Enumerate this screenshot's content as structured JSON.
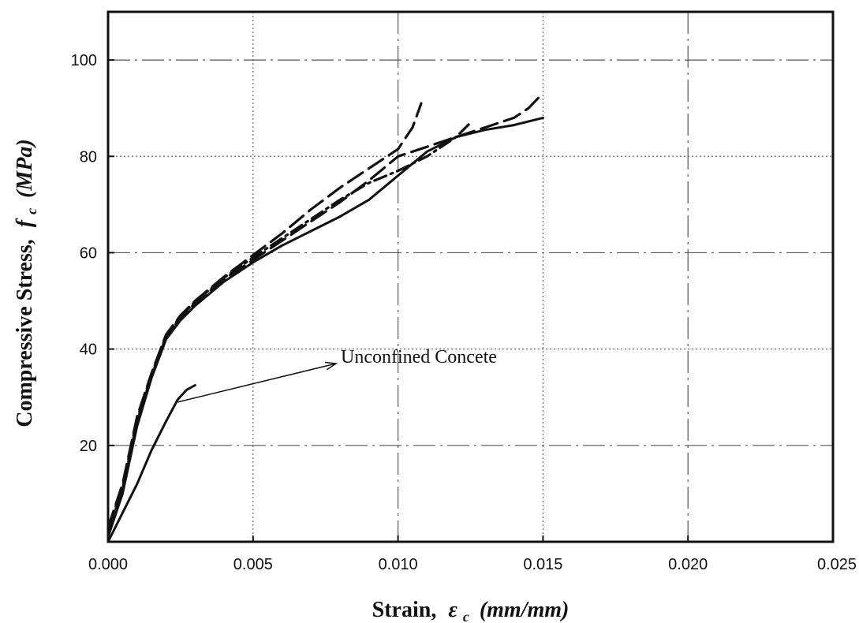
{
  "chart_data": {
    "type": "line",
    "xlabel_prefix": "Strain,",
    "xlabel_symbol": "ε",
    "xlabel_sub": "c",
    "xlabel_unit": "(mm/mm)",
    "ylabel_prefix": "Compressive Stress,",
    "ylabel_symbol": "f",
    "ylabel_sub": "c",
    "ylabel_unit": "(MPa)",
    "xlim": [
      0,
      0.025
    ],
    "ylim": [
      0,
      110
    ],
    "x_ticks": [
      0,
      0.005,
      0.01,
      0.015,
      0.02,
      0.025
    ],
    "x_tick_labels": [
      "0.000",
      "0.005",
      "0.010",
      "0.015",
      "0.020",
      "0.025"
    ],
    "y_ticks": [
      20,
      40,
      60,
      80,
      100
    ],
    "y_tick_labels": [
      "20",
      "40",
      "60",
      "80",
      "100"
    ],
    "grid": true,
    "annotation": {
      "text": "Unconfined Concete",
      "point_to": [
        0.0024,
        29
      ]
    },
    "series": [
      {
        "style": "solid",
        "points": [
          [
            0,
            1
          ],
          [
            0.0005,
            10
          ],
          [
            0.001,
            24
          ],
          [
            0.0015,
            34
          ],
          [
            0.002,
            42
          ],
          [
            0.0025,
            46
          ],
          [
            0.003,
            49
          ],
          [
            0.004,
            54
          ],
          [
            0.005,
            58
          ],
          [
            0.006,
            61.5
          ],
          [
            0.007,
            64.5
          ],
          [
            0.008,
            67.5
          ],
          [
            0.009,
            71
          ],
          [
            0.01,
            76
          ],
          [
            0.011,
            81
          ],
          [
            0.012,
            84
          ],
          [
            0.013,
            85.5
          ],
          [
            0.014,
            86.5
          ],
          [
            0.015,
            88
          ]
        ]
      },
      {
        "style": "dashed",
        "points": [
          [
            0,
            3
          ],
          [
            0.0005,
            12
          ],
          [
            0.001,
            26
          ],
          [
            0.0015,
            35
          ],
          [
            0.002,
            43
          ],
          [
            0.0025,
            47
          ],
          [
            0.003,
            50
          ],
          [
            0.004,
            55
          ],
          [
            0.005,
            59.5
          ],
          [
            0.006,
            64
          ],
          [
            0.007,
            69
          ],
          [
            0.008,
            73.5
          ],
          [
            0.009,
            77.5
          ],
          [
            0.01,
            81.5
          ],
          [
            0.0105,
            86
          ],
          [
            0.0108,
            91
          ]
        ]
      },
      {
        "style": "dashed",
        "points": [
          [
            0,
            2
          ],
          [
            0.0005,
            11
          ],
          [
            0.001,
            25
          ],
          [
            0.0015,
            34.5
          ],
          [
            0.002,
            42.5
          ],
          [
            0.0025,
            46.5
          ],
          [
            0.003,
            49.5
          ],
          [
            0.004,
            54.5
          ],
          [
            0.005,
            58.5
          ],
          [
            0.006,
            62.5
          ],
          [
            0.007,
            66.5
          ],
          [
            0.008,
            70.5
          ],
          [
            0.009,
            75
          ],
          [
            0.01,
            80
          ],
          [
            0.011,
            82
          ],
          [
            0.012,
            84
          ],
          [
            0.013,
            86
          ],
          [
            0.014,
            88
          ],
          [
            0.0145,
            90
          ],
          [
            0.0149,
            92.5
          ]
        ]
      },
      {
        "style": "dash-dot",
        "points": [
          [
            0,
            2.5
          ],
          [
            0.0005,
            11.5
          ],
          [
            0.001,
            25.5
          ],
          [
            0.0015,
            34.8
          ],
          [
            0.002,
            42.8
          ],
          [
            0.0025,
            46.8
          ],
          [
            0.003,
            49.8
          ],
          [
            0.004,
            54.8
          ],
          [
            0.005,
            59
          ],
          [
            0.006,
            63
          ],
          [
            0.007,
            67
          ],
          [
            0.008,
            71
          ],
          [
            0.009,
            74.5
          ],
          [
            0.01,
            77
          ],
          [
            0.011,
            80
          ],
          [
            0.012,
            84
          ],
          [
            0.0125,
            87
          ]
        ]
      },
      {
        "style": "solid",
        "name": "Unconfined Concete",
        "points": [
          [
            0,
            0
          ],
          [
            0.0005,
            6
          ],
          [
            0.001,
            12
          ],
          [
            0.0015,
            19
          ],
          [
            0.002,
            25
          ],
          [
            0.0024,
            29.5
          ],
          [
            0.0027,
            31.5
          ],
          [
            0.003,
            32.5
          ]
        ]
      }
    ]
  }
}
